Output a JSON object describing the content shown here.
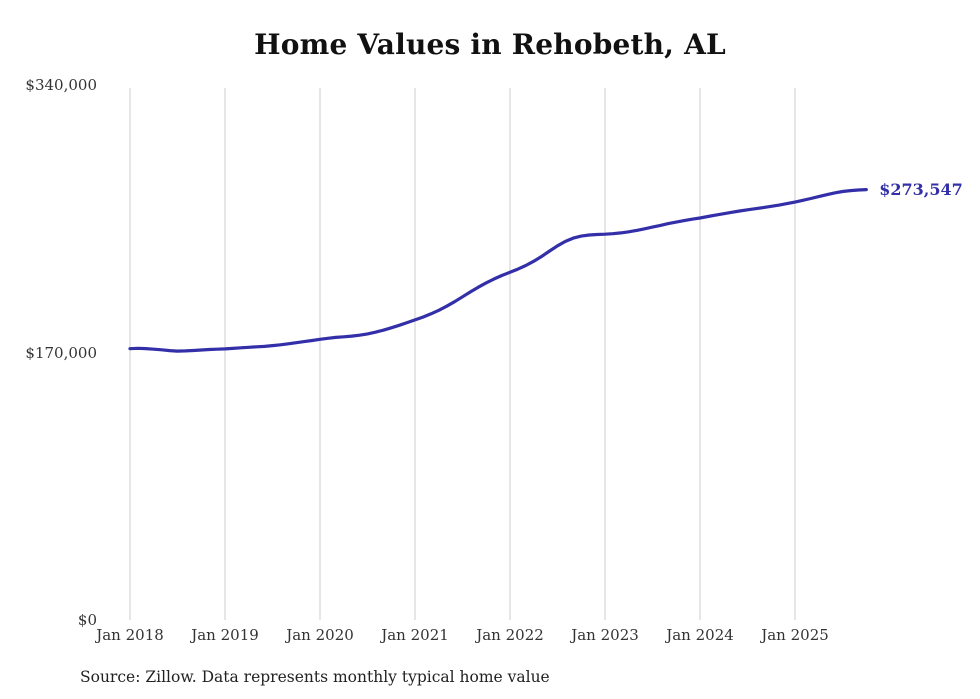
{
  "chart_data": {
    "type": "line",
    "title": "Home Values in Rehobeth, AL",
    "series_name": "Monthly typical home value",
    "frequency": "monthly",
    "x_start": "2018-01",
    "x_tick_labels": [
      "Jan 2018",
      "Jan 2019",
      "Jan 2020",
      "Jan 2021",
      "Jan 2022",
      "Jan 2023",
      "Jan 2024",
      "Jan 2025"
    ],
    "y_ticks": [
      {
        "label": "$0",
        "value": 0
      },
      {
        "label": "$170,000",
        "value": 170000
      },
      {
        "label": "$340,000",
        "value": 340000
      }
    ],
    "ylim": [
      0,
      340000
    ],
    "grid": "vertical-only",
    "legend": "none",
    "end_label": "$273,547",
    "end_value": 273547,
    "line_color": "#332fa8",
    "grid_color": "#cccccc",
    "values": [
      172400,
      172700,
      172500,
      172100,
      171700,
      171200,
      170900,
      171000,
      171300,
      171600,
      171900,
      172100,
      172300,
      172600,
      173000,
      173300,
      173600,
      173900,
      174400,
      174900,
      175500,
      176200,
      176900,
      177600,
      178400,
      179000,
      179600,
      180000,
      180400,
      181000,
      181800,
      182900,
      184200,
      185700,
      187300,
      189000,
      190700,
      192500,
      194500,
      196800,
      199400,
      202300,
      205400,
      208500,
      211500,
      214300,
      216800,
      219000,
      221000,
      223000,
      225300,
      228000,
      231100,
      234500,
      237800,
      240600,
      242700,
      244000,
      244700,
      245000,
      245200,
      245500,
      246000,
      246700,
      247600,
      248600,
      249700,
      250800,
      251900,
      252900,
      253800,
      254700,
      255500,
      256400,
      257300,
      258200,
      259100,
      259900,
      260700,
      261400,
      262100,
      262900,
      263700,
      264600,
      265600,
      266700,
      267900,
      269100,
      270300,
      271400,
      272300,
      272900,
      273300,
      273547
    ],
    "source": "Source: Zillow. Data represents monthly typical home value"
  }
}
